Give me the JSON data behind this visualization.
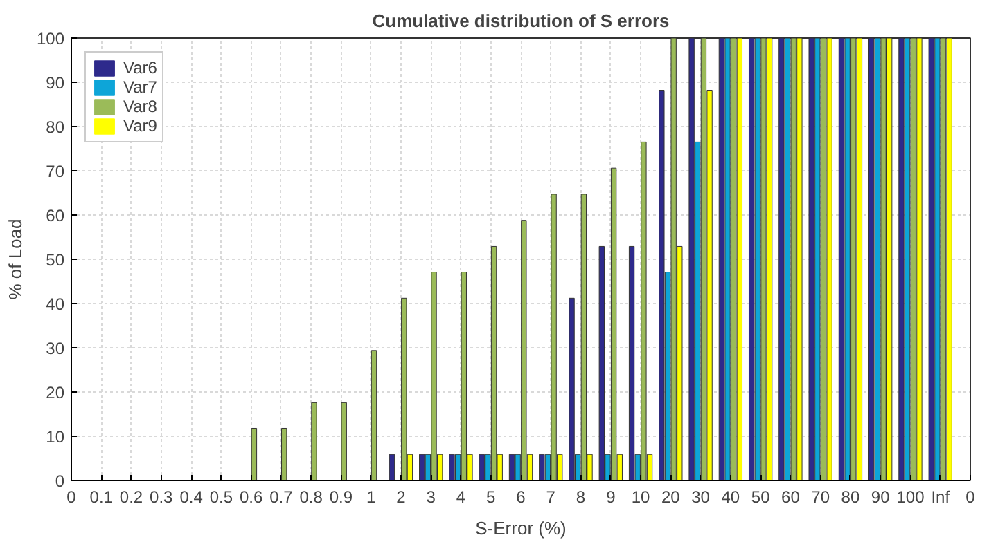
{
  "chart_data": {
    "type": "bar",
    "title": "Cumulative distribution of S errors",
    "xlabel": "S-Error (%)",
    "ylabel": "% of Load",
    "categories": [
      "0",
      "0.1",
      "0.2",
      "0.3",
      "0.4",
      "0.5",
      "0.6",
      "0.7",
      "0.8",
      "0.9",
      "1",
      "2",
      "3",
      "4",
      "5",
      "6",
      "7",
      "8",
      "9",
      "10",
      "20",
      "30",
      "40",
      "50",
      "60",
      "70",
      "80",
      "90",
      "100",
      "Inf",
      "0"
    ],
    "ylim": [
      0,
      100
    ],
    "yticks": [
      0,
      10,
      20,
      30,
      40,
      50,
      60,
      70,
      80,
      90,
      100
    ],
    "grid": true,
    "legend": "top left",
    "series": [
      {
        "name": "Var6",
        "color": "#2e2a8c",
        "values": [
          0,
          0,
          0,
          0,
          0,
          0,
          0,
          0,
          0,
          0,
          0,
          5.9,
          5.9,
          5.9,
          5.9,
          5.9,
          5.9,
          41.2,
          52.9,
          52.9,
          88.2,
          100,
          100,
          100,
          100,
          100,
          100,
          100,
          100,
          100,
          null
        ]
      },
      {
        "name": "Var7",
        "color": "#0ea5d8",
        "values": [
          0,
          0,
          0,
          0,
          0,
          0,
          0,
          0,
          0,
          0,
          0,
          0,
          5.9,
          5.9,
          5.9,
          5.9,
          5.9,
          5.9,
          5.9,
          5.9,
          47.1,
          76.5,
          100,
          100,
          100,
          100,
          100,
          100,
          100,
          100,
          null
        ]
      },
      {
        "name": "Var8",
        "color": "#9bbb59",
        "values": [
          0,
          0,
          0,
          0,
          0,
          0,
          11.8,
          11.8,
          17.6,
          17.6,
          29.4,
          41.2,
          47.1,
          47.1,
          52.9,
          58.8,
          64.7,
          64.7,
          70.6,
          76.5,
          100,
          100,
          100,
          100,
          100,
          100,
          100,
          100,
          100,
          100,
          null
        ]
      },
      {
        "name": "Var9",
        "color": "#ffff00",
        "values": [
          0,
          0,
          0,
          0,
          0,
          0,
          0,
          0,
          0,
          0,
          0,
          5.9,
          5.9,
          5.9,
          5.9,
          5.9,
          5.9,
          5.9,
          5.9,
          5.9,
          52.9,
          88.2,
          100,
          100,
          100,
          100,
          100,
          100,
          100,
          100,
          null
        ]
      }
    ]
  }
}
